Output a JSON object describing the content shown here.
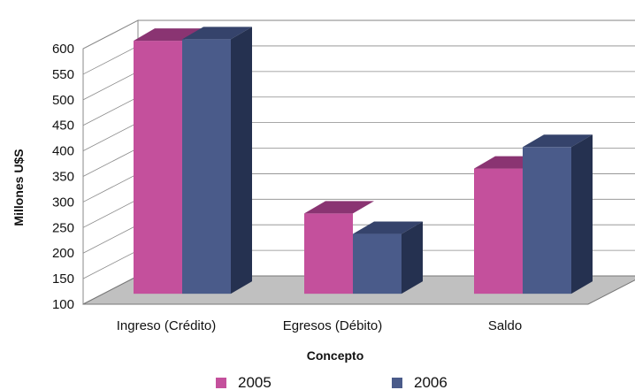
{
  "chart_data": {
    "type": "bar",
    "subtype": "3d-clustered-column",
    "categories": [
      "Ingreso (Crédito)",
      "Egresos (Débito)",
      "Saldo"
    ],
    "series": [
      {
        "name": "2005",
        "values": [
          595,
          257,
          345
        ],
        "color": "#c4509c",
        "top_color": "#8a3472"
      },
      {
        "name": "2006",
        "values": [
          598,
          217,
          387
        ],
        "color": "#4a5b8a",
        "top_color": "#35436b",
        "side_color": "#253150"
      }
    ],
    "xlabel": "Concepto",
    "ylabel": "Millones U$S",
    "ylim": [
      100,
      600
    ],
    "yticks": [
      100,
      150,
      200,
      250,
      300,
      350,
      400,
      450,
      500,
      550,
      600
    ],
    "grid": true,
    "legend_position": "bottom",
    "floor_color": "#c0c0c0"
  }
}
